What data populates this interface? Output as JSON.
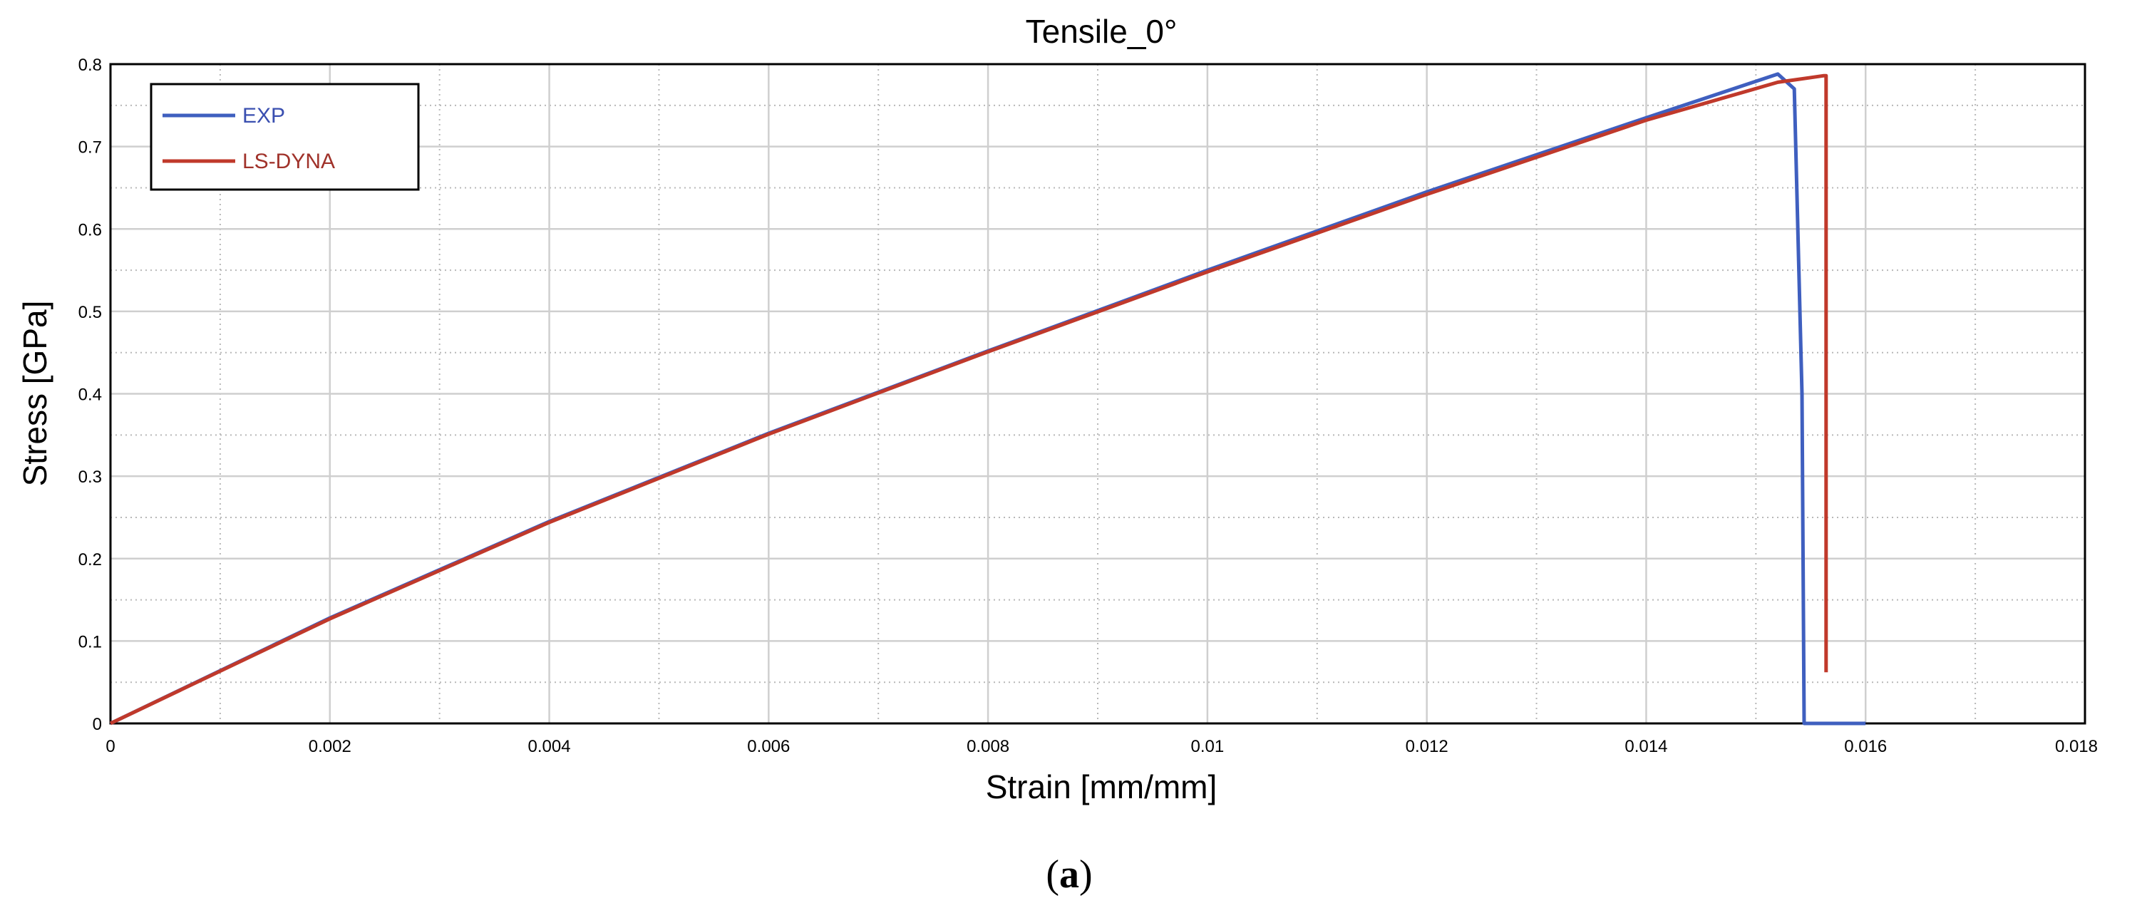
{
  "chart_data": {
    "type": "line",
    "title": "Tensile_0°",
    "xlabel": "Strain [mm/mm]",
    "ylabel": "Stress [GPa]",
    "xlim": [
      0,
      0.018
    ],
    "ylim": [
      0,
      0.8
    ],
    "x_ticks": [
      "0",
      "0.002",
      "0.004",
      "0.006",
      "0.008",
      "0.01",
      "0.012",
      "0.014",
      "0.016",
      "0.018"
    ],
    "y_ticks": [
      "0",
      "0.1",
      "0.2",
      "0.3",
      "0.4",
      "0.5",
      "0.6",
      "0.7",
      "0.8"
    ],
    "grid": true,
    "legend_position": "top-left",
    "series": [
      {
        "name": "EXP",
        "color": "#3f5fbf",
        "points": [
          [
            0,
            0
          ],
          [
            0.002,
            0.128
          ],
          [
            0.004,
            0.245
          ],
          [
            0.006,
            0.352
          ],
          [
            0.008,
            0.452
          ],
          [
            0.01,
            0.55
          ],
          [
            0.012,
            0.645
          ],
          [
            0.014,
            0.735
          ],
          [
            0.0152,
            0.788
          ],
          [
            0.01535,
            0.77
          ],
          [
            0.01542,
            0.4
          ],
          [
            0.01544,
            0.0
          ],
          [
            0.016,
            0.0
          ]
        ]
      },
      {
        "name": "LS-DYNA",
        "color": "#c0392b",
        "points": [
          [
            0,
            0
          ],
          [
            0.002,
            0.127
          ],
          [
            0.004,
            0.244
          ],
          [
            0.006,
            0.351
          ],
          [
            0.008,
            0.451
          ],
          [
            0.01,
            0.548
          ],
          [
            0.012,
            0.642
          ],
          [
            0.014,
            0.732
          ],
          [
            0.0152,
            0.778
          ],
          [
            0.01562,
            0.786
          ],
          [
            0.01564,
            0.786
          ],
          [
            0.01564,
            0.062
          ]
        ]
      }
    ]
  },
  "caption": {
    "open": "(",
    "letter": "a",
    "close": ")"
  }
}
